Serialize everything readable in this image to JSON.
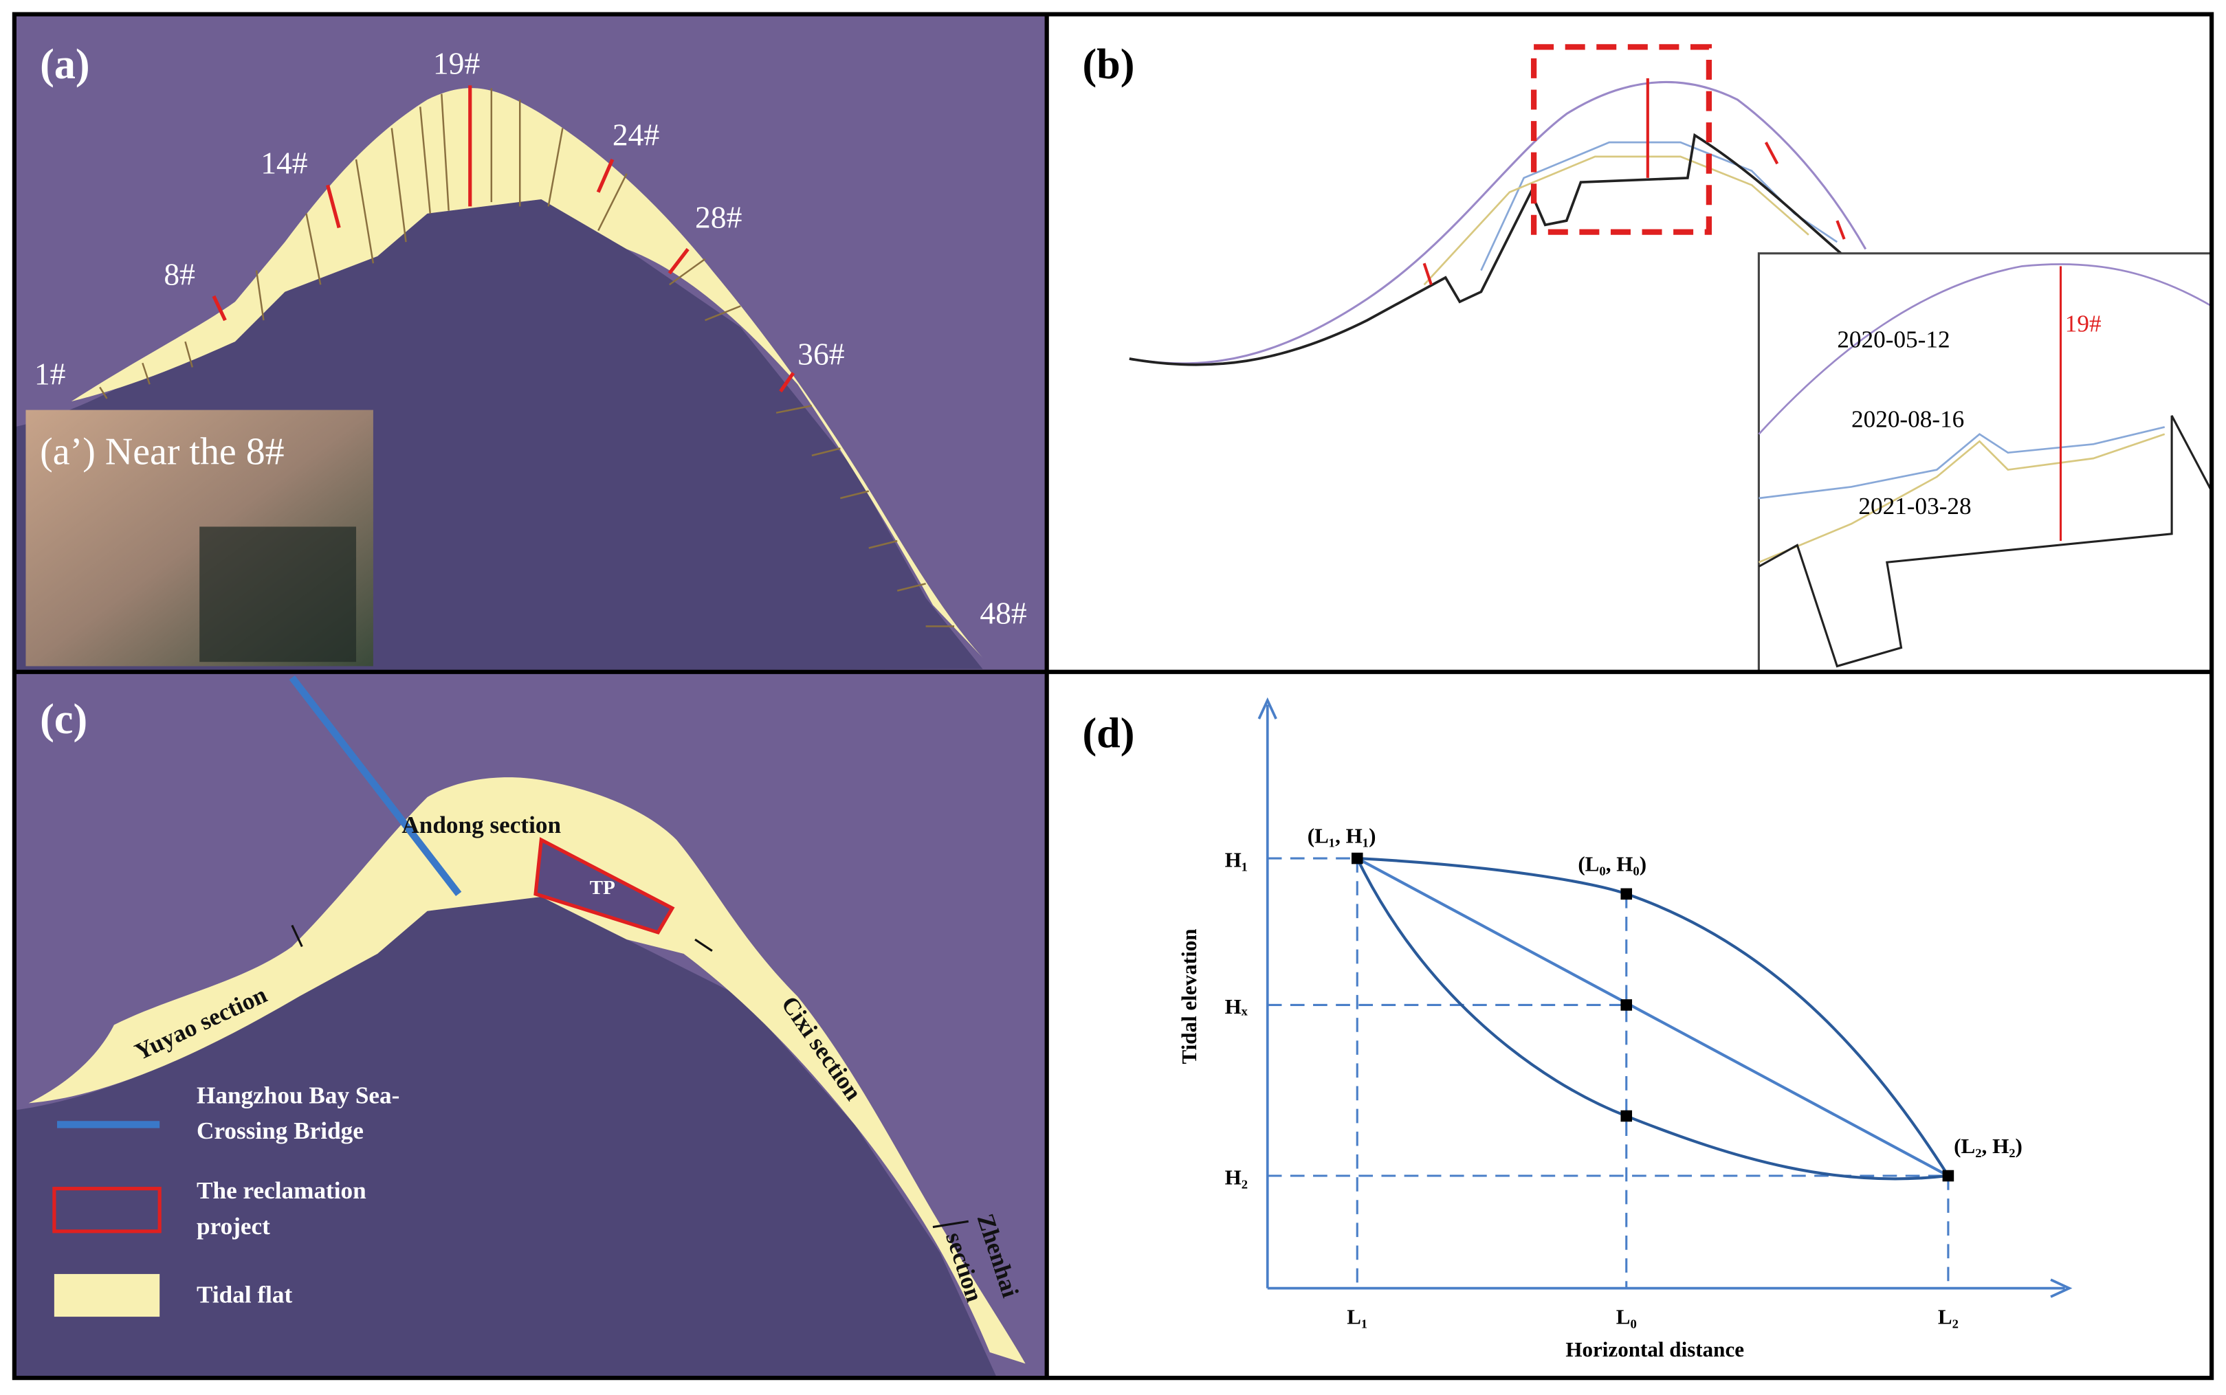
{
  "panel_a": {
    "label": "(a)",
    "transects": [
      "1#",
      "8#",
      "14#",
      "19#",
      "24#",
      "28#",
      "36#",
      "48#"
    ],
    "inset_label": "(a’) Near the 8#"
  },
  "panel_b": {
    "label": "(b)",
    "dates": [
      "2020-05-12",
      "2020-08-16",
      "2021-03-28"
    ],
    "transect": "19#"
  },
  "panel_c": {
    "label": "(c)",
    "sections": {
      "andong": "Andong section",
      "yuyao": "Yuyao section",
      "cixi": "Cixi section",
      "zhenhai": [
        "Zhenhai",
        "section"
      ]
    },
    "tp": "TP",
    "legend": [
      {
        "lines": [
          "Hangzhou Bay Sea-",
          "Crossing Bridge"
        ]
      },
      {
        "lines": [
          "The reclamation",
          "project"
        ]
      },
      {
        "lines": [
          "Tidal flat"
        ]
      }
    ]
  },
  "panel_d": {
    "label": "(d)",
    "y_axis_title": "Tidal elevation",
    "x_axis_title": "Horizontal distance",
    "y_labels": [
      "H₁",
      "Hₓ",
      "H₂"
    ],
    "x_labels": [
      "L₁",
      "L₀",
      "L₂"
    ],
    "points": [
      "(L₁, H₁)",
      "(L₀, H₀)",
      "(L₂, H₂)"
    ]
  }
}
